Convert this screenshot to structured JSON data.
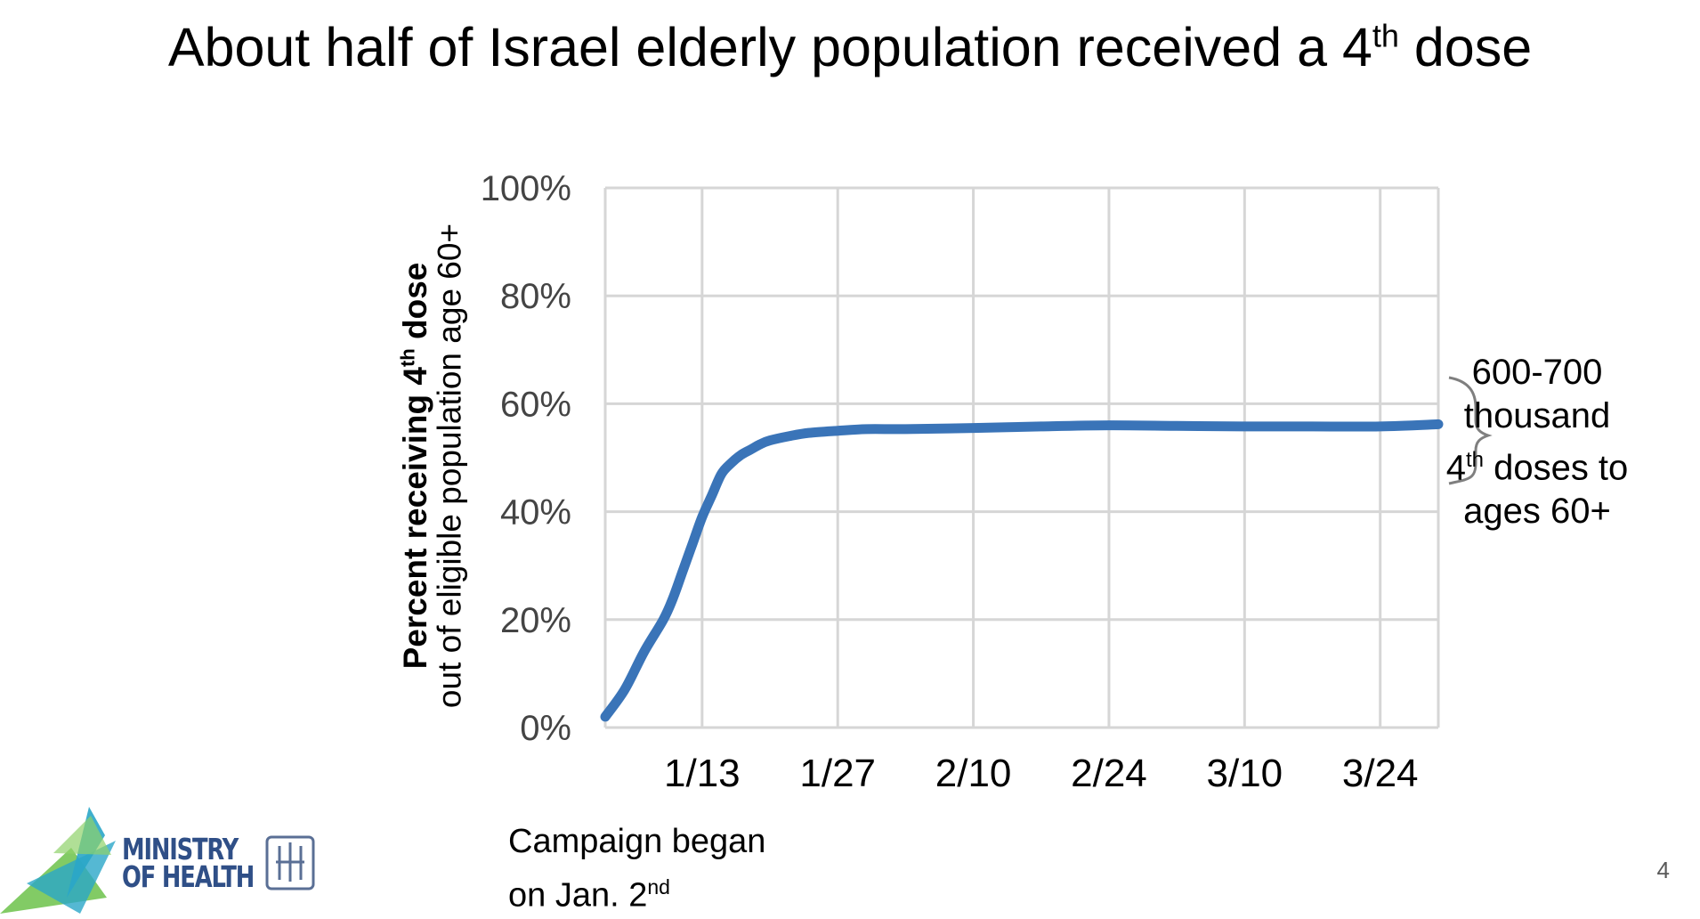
{
  "title": {
    "text": "About half of Israel elderly population received a 4",
    "sup": "th",
    "tail": " dose"
  },
  "y_axis": {
    "line1_pre": "Percent receiving 4",
    "line1_sup": "th",
    "line1_post": " dose",
    "line2": "out of eligible population age 60+"
  },
  "annotation": {
    "line1": "600-700",
    "line2": "thousand",
    "line3_pre": "4",
    "line3_sup": "th",
    "line3_post": " doses to",
    "line4": "ages 60+"
  },
  "note": {
    "line1": "Campaign began",
    "line2_pre": "on Jan. 2",
    "line2_sup": "nd"
  },
  "page_number": "4",
  "logo": {
    "text_line1": "MINISTRY",
    "text_line2": "OF HEALTH"
  },
  "colors": {
    "line": "#3a74b8",
    "grid": "#d6d6d6",
    "logo_blue": "#2f4f87",
    "logo_green": "#6cc24a",
    "logo_teal": "#2aa6c8"
  },
  "chart_data": {
    "type": "line",
    "title": "About half of Israel elderly population received a 4th dose",
    "ylabel": "Percent receiving 4th dose out of eligible population age 60+",
    "xlabel": "",
    "x_ticks": [
      {
        "day": 13,
        "label": "1/13"
      },
      {
        "day": 27,
        "label": "1/27"
      },
      {
        "day": 41,
        "label": "2/10"
      },
      {
        "day": 55,
        "label": "2/24"
      },
      {
        "day": 69,
        "label": "3/10"
      },
      {
        "day": 83,
        "label": "3/24"
      }
    ],
    "y_ticks": [
      0,
      20,
      40,
      60,
      80,
      100
    ],
    "y_tick_labels": [
      "0%",
      "20%",
      "40%",
      "60%",
      "80%",
      "100%"
    ],
    "xlim": [
      3,
      89
    ],
    "ylim": [
      0,
      100
    ],
    "grid": true,
    "series": [
      {
        "values": [
          [
            3,
            2
          ],
          [
            5,
            7
          ],
          [
            7,
            14
          ],
          [
            9,
            20
          ],
          [
            10,
            24
          ],
          [
            11,
            29
          ],
          [
            12,
            34
          ],
          [
            13,
            39
          ],
          [
            14,
            43
          ],
          [
            15,
            47
          ],
          [
            16,
            49
          ],
          [
            17,
            50.5
          ],
          [
            18,
            51.5
          ],
          [
            19,
            52.5
          ],
          [
            20,
            53.2
          ],
          [
            22,
            54.0
          ],
          [
            24,
            54.6
          ],
          [
            27,
            55.0
          ],
          [
            30,
            55.3
          ],
          [
            34,
            55.3
          ],
          [
            41,
            55.5
          ],
          [
            48,
            55.8
          ],
          [
            55,
            56.0
          ],
          [
            62,
            55.9
          ],
          [
            69,
            55.8
          ],
          [
            76,
            55.8
          ],
          [
            83,
            55.8
          ],
          [
            89,
            56.2
          ]
        ]
      }
    ]
  }
}
